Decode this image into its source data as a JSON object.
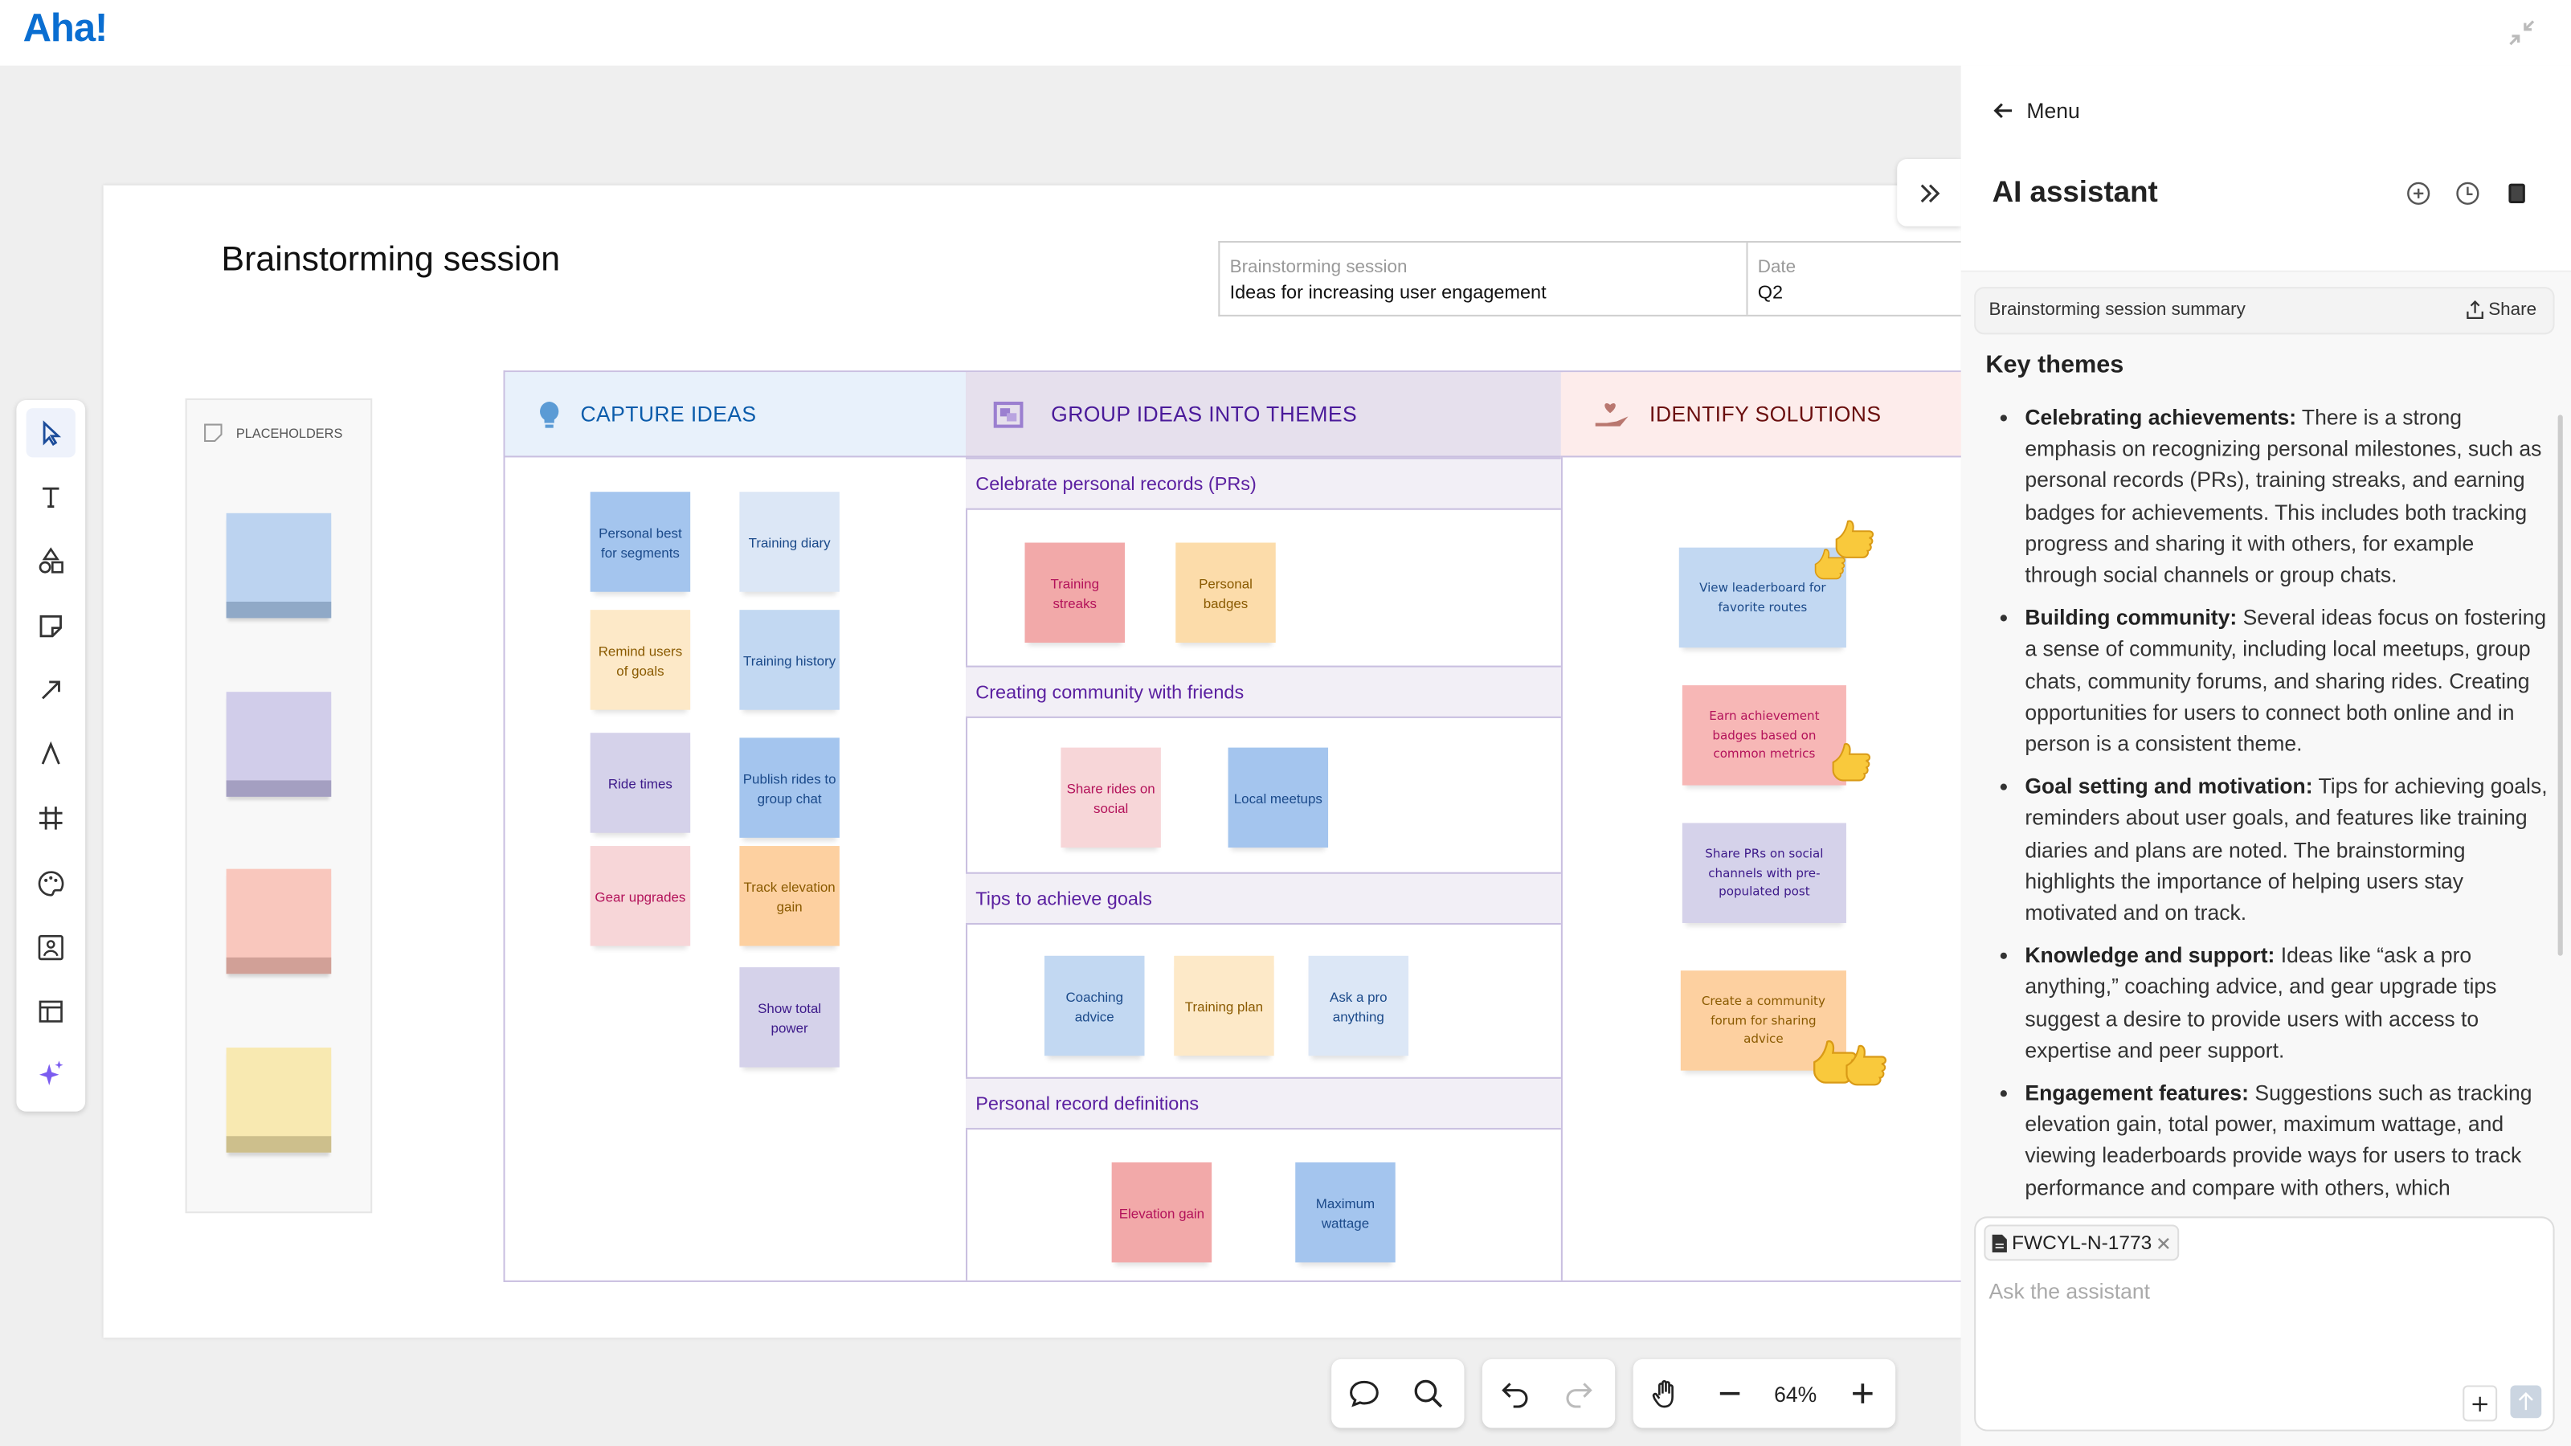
{
  "app": {
    "logo": "Aha!"
  },
  "board": {
    "title": "Brainstorming session",
    "info": {
      "label1": "Brainstorming session",
      "value1": "Ideas for increasing user engagement",
      "label2": "Date",
      "value2": "Q2"
    },
    "placeholders_label": "PLACEHOLDERS",
    "columns": [
      {
        "title": "CAPTURE IDEAS",
        "color": "#0b5cab",
        "bg": "#e8f1fb"
      },
      {
        "title": "GROUP IDEAS INTO THEMES",
        "color": "#4a1a9a",
        "bg": "#e6e0ed"
      },
      {
        "title": "IDENTIFY SOLUTIONS",
        "color": "#6a0f0f",
        "bg": "#fdeceb"
      }
    ],
    "capture": [
      "Personal best for segments",
      "Training diary",
      "Remind users of goals",
      "Training history",
      "Ride times",
      "Publish rides to group chat",
      "Gear upgrades",
      "Track elevation gain",
      "Show total power"
    ],
    "sections": [
      {
        "title": "Celebrate personal records (PRs)",
        "notes": [
          "Training streaks",
          "Personal badges"
        ]
      },
      {
        "title": "Creating community with friends",
        "notes": [
          "Share rides on social",
          "Local meetups"
        ]
      },
      {
        "title": "Tips to achieve goals",
        "notes": [
          "Coaching advice",
          "Training plan",
          "Ask a pro anything"
        ]
      },
      {
        "title": "Personal record definitions",
        "notes": [
          "Elevation gain",
          "Maximum wattage"
        ]
      }
    ],
    "solutions": [
      {
        "text": "View leaderboard for favorite routes",
        "votes": 2
      },
      {
        "text": "Earn achievement badges based on common metrics",
        "votes": 1
      },
      {
        "text": "Share PRs on social channels with pre-populated post",
        "votes": 0
      },
      {
        "text": "Create a community forum for sharing advice",
        "votes": 2
      }
    ]
  },
  "toolbar": {
    "zoom": "64%"
  },
  "assistant": {
    "menu": "Menu",
    "title": "AI assistant",
    "summary_title": "Brainstorming session summary",
    "share": "Share",
    "heading": "Key themes",
    "bullets": [
      {
        "bold": "Celebrating achievements:",
        "text": " There is a strong emphasis on recognizing personal milestones, such as personal records (PRs), training streaks, and earning badges for achievements. This includes both tracking progress and sharing it with others, for example through social channels or group chats."
      },
      {
        "bold": "Building community:",
        "text": " Several ideas focus on fostering a sense of community, including local meetups, group chats, community forums, and sharing rides. Creating opportunities for users to connect both online and in person is a consistent theme."
      },
      {
        "bold": "Goal setting and motivation:",
        "text": " Tips for achieving goals, reminders about user goals, and features like training diaries and plans are noted. The brainstorming highlights the importance of helping users stay motivated and on track."
      },
      {
        "bold": "Knowledge and support:",
        "text": " Ideas like “ask a pro anything,” coaching advice, and gear upgrade tips suggest a desire to provide users with access to expertise and peer support."
      },
      {
        "bold": "Engagement features:",
        "text": " Suggestions such as tracking elevation gain, total power, maximum wattage, and viewing leaderboards provide ways for users to track performance and compare with others, which"
      }
    ],
    "attachment": "FWCYL-N-1773",
    "input_placeholder": "Ask the assistant"
  }
}
